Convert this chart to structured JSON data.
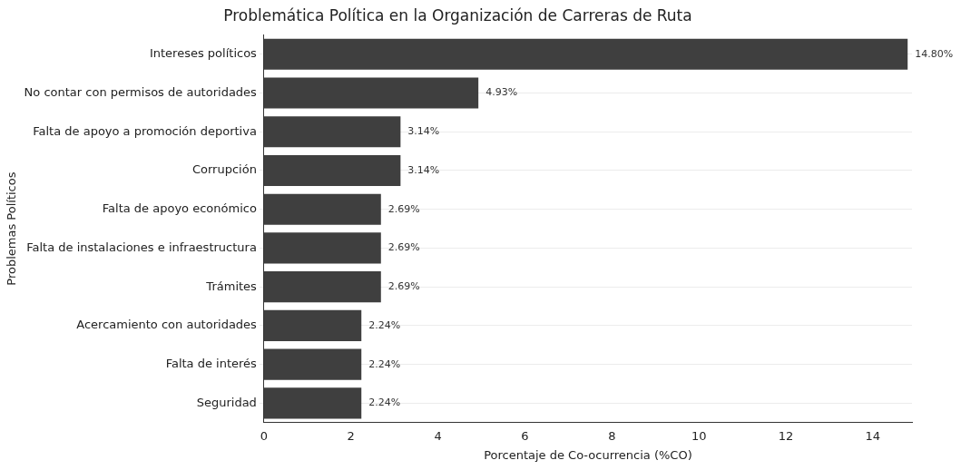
{
  "chart_data": {
    "type": "bar",
    "orientation": "horizontal",
    "title": "Problemática Política en la Organización de Carreras de Ruta",
    "xlabel": "Porcentaje de Co-ocurrencia (%CO)",
    "ylabel": "Problemas Políticos",
    "categories": [
      "Intereses políticos",
      "No contar con permisos de autoridades",
      "Falta de apoyo a promoción deportiva",
      "Corrupción",
      "Falta de apoyo económico",
      "Falta de instalaciones e infraestructura",
      "Trámites",
      "Acercamiento con autoridades",
      "Falta de interés",
      "Seguridad"
    ],
    "values": [
      14.8,
      4.93,
      3.14,
      3.14,
      2.69,
      2.69,
      2.69,
      2.24,
      2.24,
      2.24
    ],
    "value_labels": [
      "14.80%",
      "4.93%",
      "3.14%",
      "3.14%",
      "2.69%",
      "2.69%",
      "2.69%",
      "2.24%",
      "2.24%",
      "2.24%"
    ],
    "color": "#3f3f3f",
    "xlim": [
      0,
      14.9
    ],
    "xticks": [
      0,
      2,
      4,
      6,
      8,
      10,
      12,
      14
    ],
    "grid": "y"
  }
}
